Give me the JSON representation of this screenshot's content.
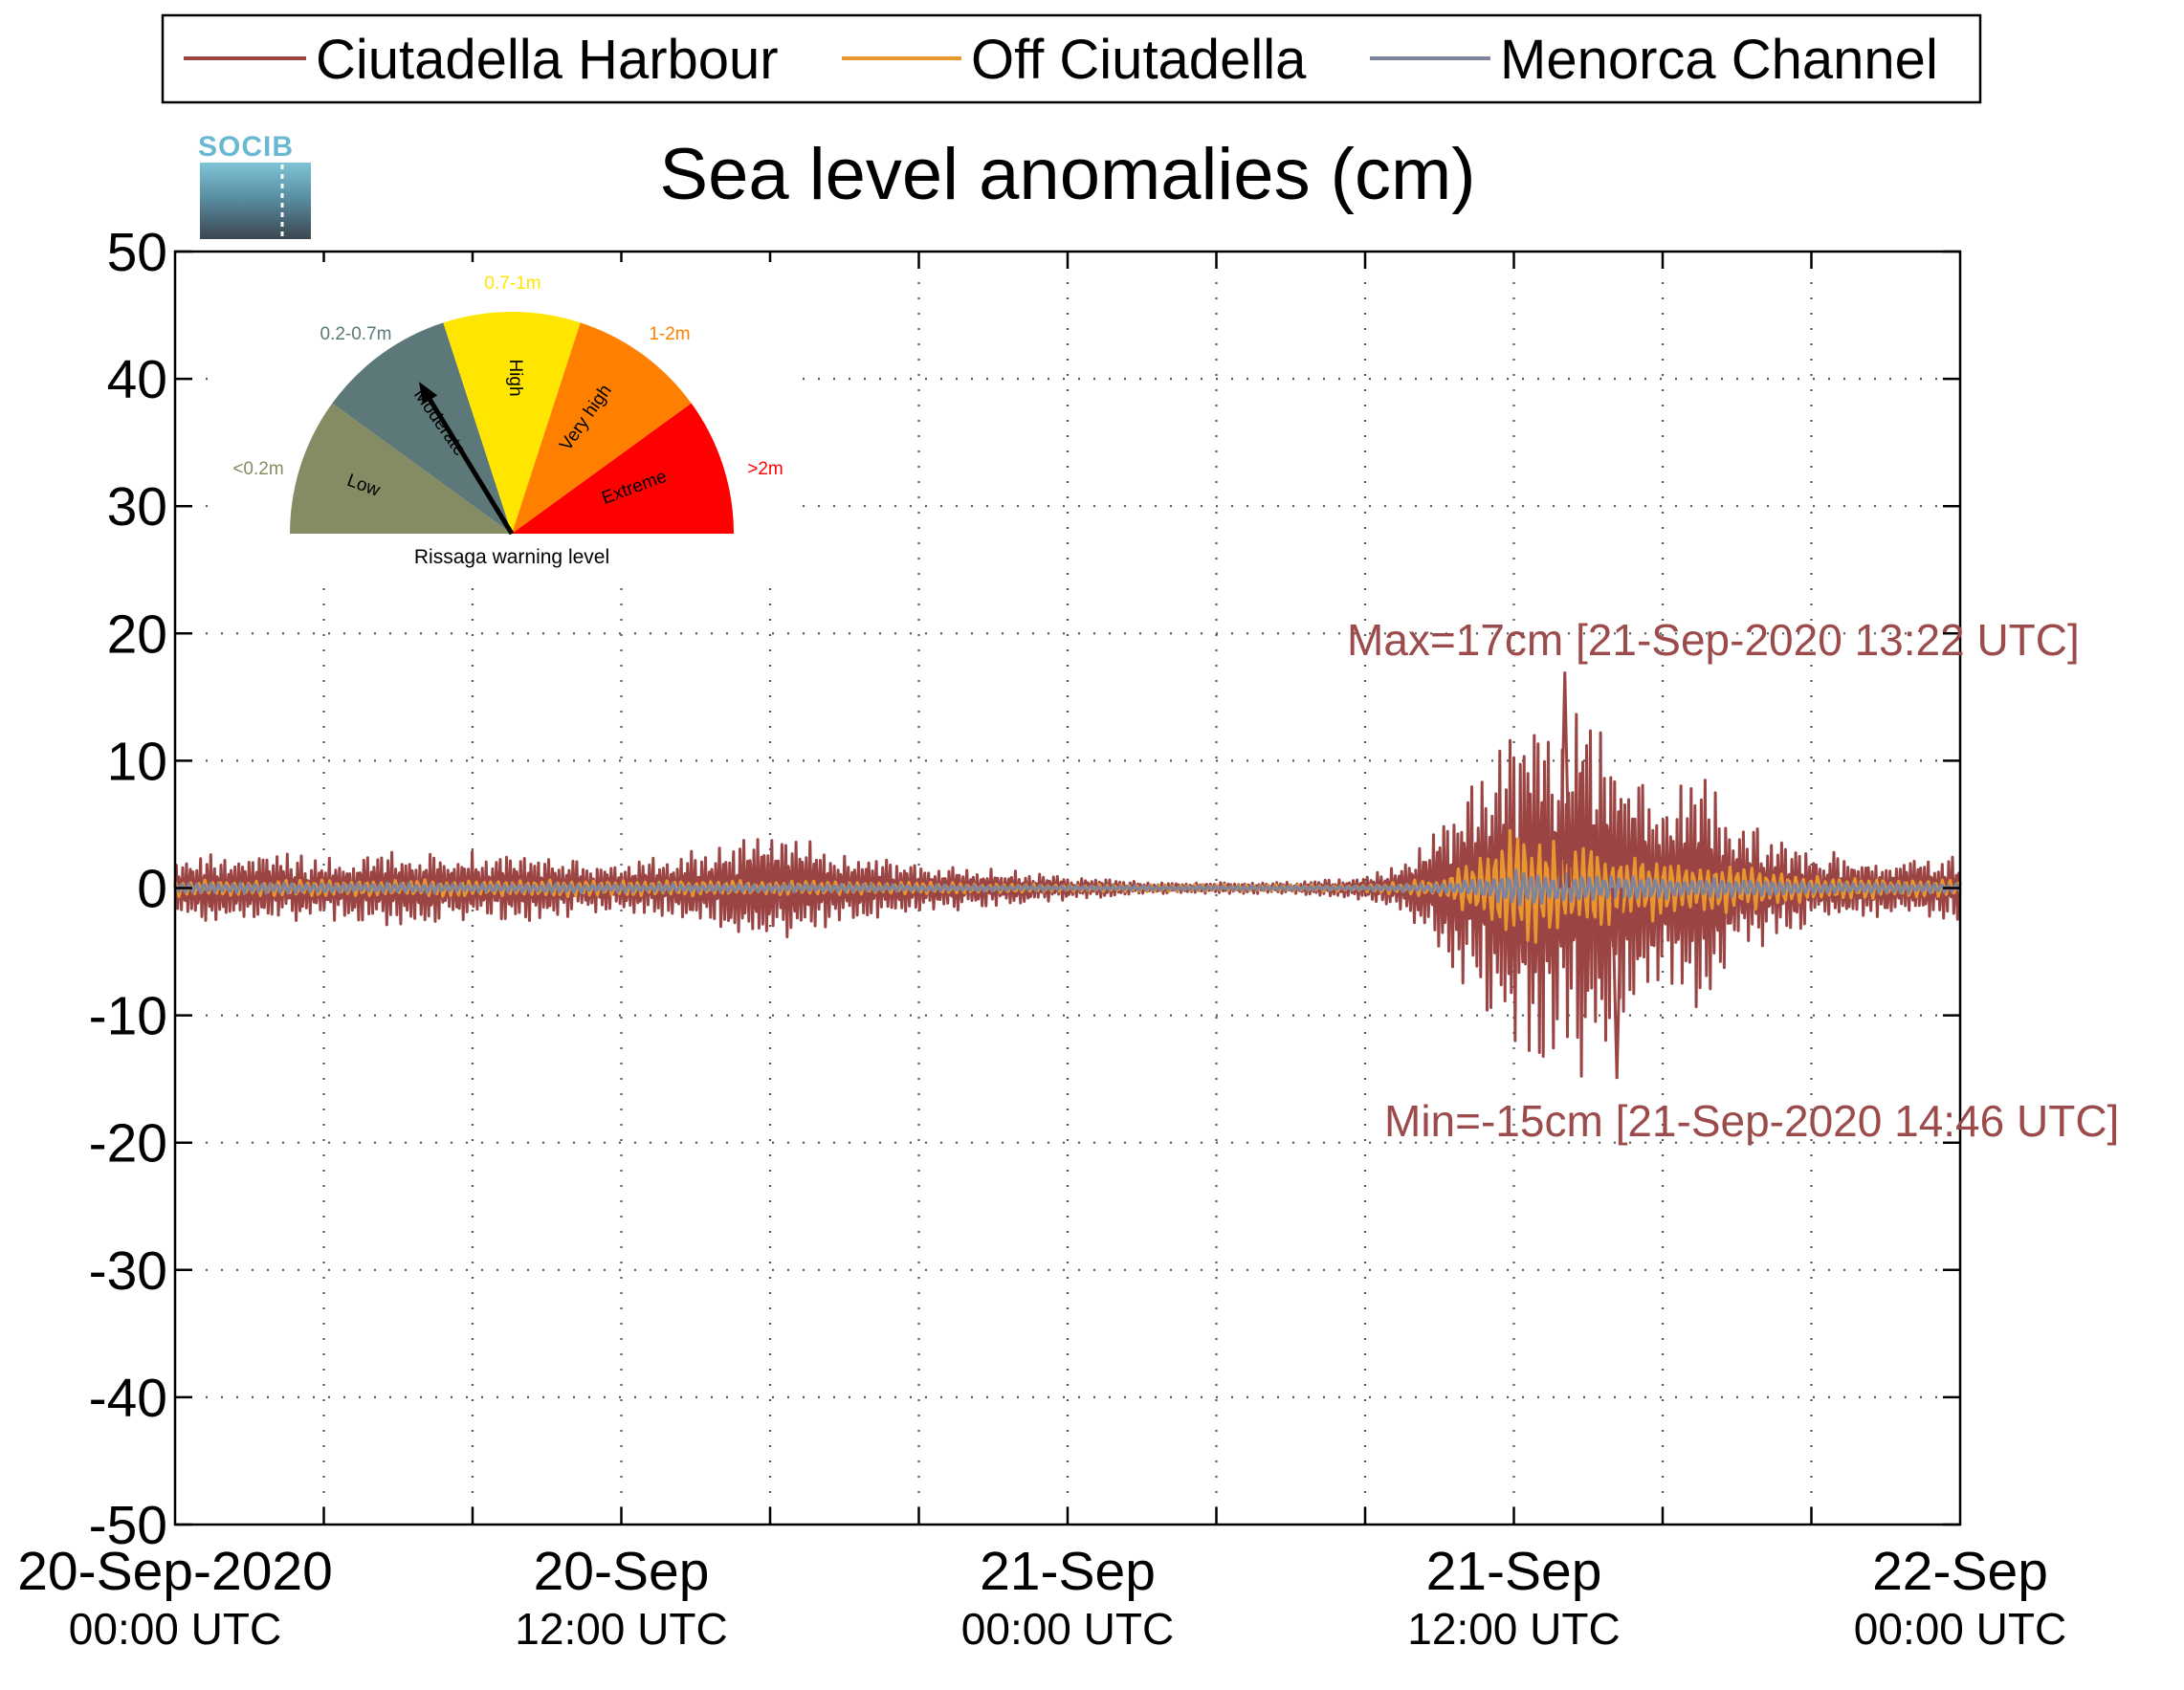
{
  "chart_data": {
    "type": "line",
    "title": "Sea level anomalies (cm)",
    "ylabel": "",
    "xlabel": "",
    "ylim": [
      -50,
      50
    ],
    "yticks": [
      50,
      40,
      30,
      20,
      10,
      0,
      -10,
      -20,
      -30,
      -40,
      -50
    ],
    "ytick_labels": [
      "50",
      "40",
      "30",
      "20",
      "10",
      "0",
      "-10",
      "-20",
      "-30",
      "-40",
      "-50"
    ],
    "xlim_hours": [
      0,
      48
    ],
    "xticks_hours": [
      0,
      12,
      24,
      36,
      48
    ],
    "xtick_labels": [
      {
        "date": "20-Sep-2020",
        "time": "00:00 UTC"
      },
      {
        "date": "20-Sep",
        "time": "12:00 UTC"
      },
      {
        "date": "21-Sep",
        "time": "00:00 UTC"
      },
      {
        "date": "21-Sep",
        "time": "12:00 UTC"
      },
      {
        "date": "22-Sep",
        "time": "00:00 UTC"
      }
    ],
    "grid": true,
    "legend_position": "top",
    "series": [
      {
        "name": "Ciutadella Harbour",
        "color": "#9b4444",
        "envelope": {
          "hours": [
            0,
            2,
            4,
            6,
            8,
            10,
            12,
            14,
            15,
            16,
            17,
            18,
            20,
            22,
            24,
            26,
            28,
            30,
            32,
            33,
            34,
            35,
            35.5,
            36,
            37,
            38,
            39,
            40,
            41,
            42,
            43,
            44,
            46,
            48
          ],
          "amplitude_cm": [
            2.5,
            3,
            2.5,
            3,
            3,
            2.5,
            2,
            3,
            4,
            4.5,
            4,
            3,
            2,
            1.5,
            1,
            0.5,
            0.5,
            0.5,
            1,
            2,
            5,
            10,
            12,
            14,
            15,
            15,
            12,
            8,
            10,
            6,
            4,
            3,
            2.5,
            2.5
          ]
        }
      },
      {
        "name": "Off Ciutadella",
        "color": "#e8962d",
        "envelope": {
          "hours": [
            0,
            10,
            20,
            24,
            32,
            34,
            35,
            36,
            37,
            38,
            40,
            42,
            44,
            48
          ],
          "amplitude_cm": [
            0.7,
            0.7,
            0.5,
            0.3,
            0.3,
            0.8,
            2.5,
            5,
            4,
            3.5,
            2.5,
            2,
            1,
            0.7
          ]
        }
      },
      {
        "name": "Menorca Channel",
        "color": "#7f849e",
        "envelope": {
          "hours": [
            0,
            10,
            20,
            24,
            32,
            34,
            35,
            36,
            38,
            40,
            42,
            44,
            48
          ],
          "amplitude_cm": [
            0.4,
            0.4,
            0.3,
            0.2,
            0.2,
            0.4,
            0.8,
            1.5,
            1.2,
            1,
            0.8,
            0.5,
            0.4
          ]
        }
      }
    ],
    "annotations": [
      {
        "text": "Max=17cm [21-Sep-2020 13:22 UTC]",
        "hour": 37.37,
        "value": 17
      },
      {
        "text": "Min=-15cm [21-Sep-2020 14:46 UTC]",
        "hour": 38.77,
        "value": -15
      }
    ]
  },
  "logo": {
    "text": "SOCIB"
  },
  "gauge": {
    "caption": "Rissaga warning level",
    "sectors": [
      {
        "name": "Low",
        "range": "<0.2m",
        "color": "#858c63",
        "label_color": "#858c63"
      },
      {
        "name": "Moderate",
        "range": "0.2-0.7m",
        "color": "#5c7878",
        "label_color": "#5c7878"
      },
      {
        "name": "High",
        "range": "0.7-1m",
        "color": "#ffe600",
        "label_color": "#ffe600"
      },
      {
        "name": "Very high",
        "range": "1-2m",
        "color": "#ff8000",
        "label_color": "#ff8000"
      },
      {
        "name": "Extreme",
        "range": ">2m",
        "color": "#ff0000",
        "label_color": "#ff0000"
      }
    ],
    "needle_sector": "Moderate"
  }
}
